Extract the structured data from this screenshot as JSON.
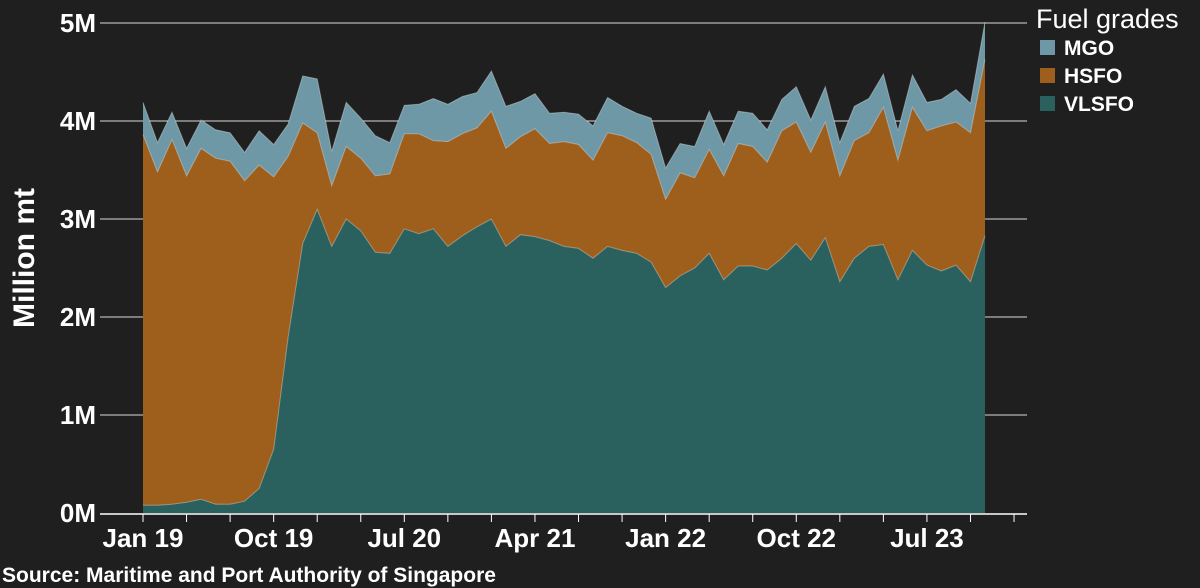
{
  "chart_data": {
    "type": "area",
    "stacked": true,
    "ylabel": "Million mt",
    "ylim": [
      0,
      5
    ],
    "y_ticks": [
      0,
      1,
      2,
      3,
      4,
      5
    ],
    "y_tick_labels": [
      "0M",
      "1M",
      "2M",
      "3M",
      "4M",
      "5M"
    ],
    "x_start": "Jan 19",
    "x_ticks": [
      "Jan 19",
      "Oct 19",
      "Jul 20",
      "Apr 21",
      "Jan 22",
      "Oct 22",
      "Jul 23"
    ],
    "x_tick_month_index": [
      0,
      9,
      18,
      27,
      36,
      45,
      54
    ],
    "grid": "horizontal",
    "legend_title": "Fuel grades",
    "legend_placement": "top-right",
    "series": [
      {
        "name": "VLSFO",
        "color": "#2a615e",
        "values": [
          0.08,
          0.08,
          0.09,
          0.11,
          0.14,
          0.09,
          0.09,
          0.12,
          0.25,
          0.65,
          1.8,
          2.75,
          3.1,
          2.72,
          3.0,
          2.88,
          2.66,
          2.65,
          2.9,
          2.85,
          2.9,
          2.72,
          2.83,
          2.92,
          3.0,
          2.72,
          2.84,
          2.82,
          2.78,
          2.72,
          2.7,
          2.6,
          2.72,
          2.68,
          2.65,
          2.56,
          2.3,
          2.42,
          2.5,
          2.65,
          2.38,
          2.52,
          2.52,
          2.48,
          2.6,
          2.75,
          2.58,
          2.81,
          2.36,
          2.6,
          2.72,
          2.74,
          2.38,
          2.68,
          2.53,
          2.47,
          2.53,
          2.36,
          2.83
        ]
      },
      {
        "name": "HSFO",
        "color": "#9e5e1c",
        "values": [
          3.78,
          3.4,
          3.72,
          3.33,
          3.58,
          3.53,
          3.5,
          3.27,
          3.3,
          2.78,
          1.84,
          1.23,
          0.78,
          0.62,
          0.74,
          0.74,
          0.78,
          0.81,
          0.97,
          1.02,
          0.9,
          1.07,
          1.04,
          1.01,
          1.1,
          1.0,
          1.0,
          1.1,
          0.99,
          1.07,
          1.06,
          1.0,
          1.16,
          1.17,
          1.13,
          1.1,
          0.9,
          1.05,
          0.92,
          1.06,
          1.06,
          1.25,
          1.22,
          1.1,
          1.3,
          1.24,
          1.1,
          1.18,
          1.08,
          1.2,
          1.16,
          1.4,
          1.22,
          1.46,
          1.37,
          1.48,
          1.46,
          1.52,
          1.8
        ]
      },
      {
        "name": "MGO",
        "color": "#6f98a6",
        "values": [
          0.33,
          0.3,
          0.28,
          0.28,
          0.29,
          0.29,
          0.29,
          0.29,
          0.35,
          0.33,
          0.33,
          0.48,
          0.55,
          0.35,
          0.45,
          0.41,
          0.41,
          0.32,
          0.29,
          0.3,
          0.43,
          0.38,
          0.38,
          0.36,
          0.41,
          0.43,
          0.36,
          0.36,
          0.31,
          0.3,
          0.31,
          0.35,
          0.36,
          0.3,
          0.3,
          0.37,
          0.32,
          0.3,
          0.32,
          0.39,
          0.32,
          0.33,
          0.34,
          0.33,
          0.32,
          0.36,
          0.33,
          0.36,
          0.34,
          0.35,
          0.35,
          0.34,
          0.3,
          0.33,
          0.29,
          0.27,
          0.33,
          0.3,
          0.38
        ]
      }
    ]
  },
  "source_text": "Source: Maritime and Port Authority of Singapore"
}
